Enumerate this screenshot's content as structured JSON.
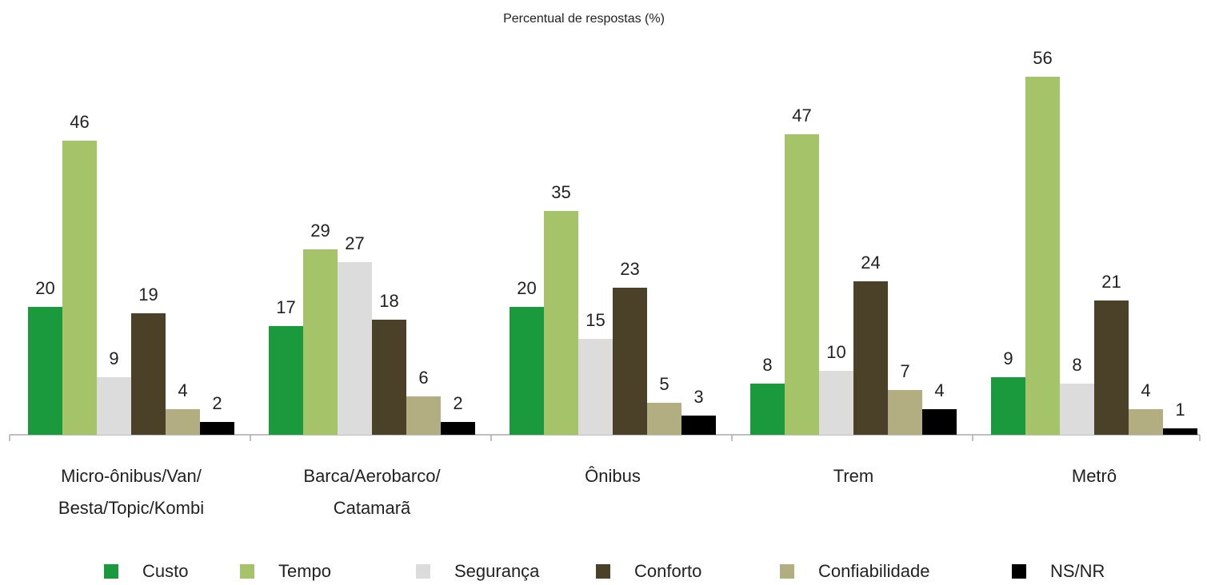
{
  "chart_data": {
    "type": "bar",
    "title": "Percentual de respostas (%)",
    "categories": [
      [
        "Micro-ônibus/Van/",
        "Besta/Topic/Kombi"
      ],
      [
        "Barca/Aerobarco/",
        "Catamarã"
      ],
      [
        "Ônibus"
      ],
      [
        "Trem"
      ],
      [
        "Metrô"
      ]
    ],
    "series": [
      {
        "name": "Custo",
        "color": "#1a9a3c",
        "values": [
          20,
          17,
          20,
          8,
          9
        ]
      },
      {
        "name": "Tempo",
        "color": "#a5c46a",
        "values": [
          46,
          29,
          35,
          47,
          56
        ]
      },
      {
        "name": "Segurança",
        "color": "#dcdcdc",
        "values": [
          9,
          27,
          15,
          10,
          8
        ]
      },
      {
        "name": "Conforto",
        "color": "#4a4128",
        "values": [
          19,
          18,
          23,
          24,
          21
        ]
      },
      {
        "name": "Confiabilidade",
        "color": "#b3ad82",
        "values": [
          4,
          6,
          5,
          7,
          4
        ]
      },
      {
        "name": "NS/NR",
        "color": "#000000",
        "values": [
          2,
          2,
          3,
          4,
          1
        ]
      }
    ],
    "ylim": [
      0,
      60
    ]
  }
}
